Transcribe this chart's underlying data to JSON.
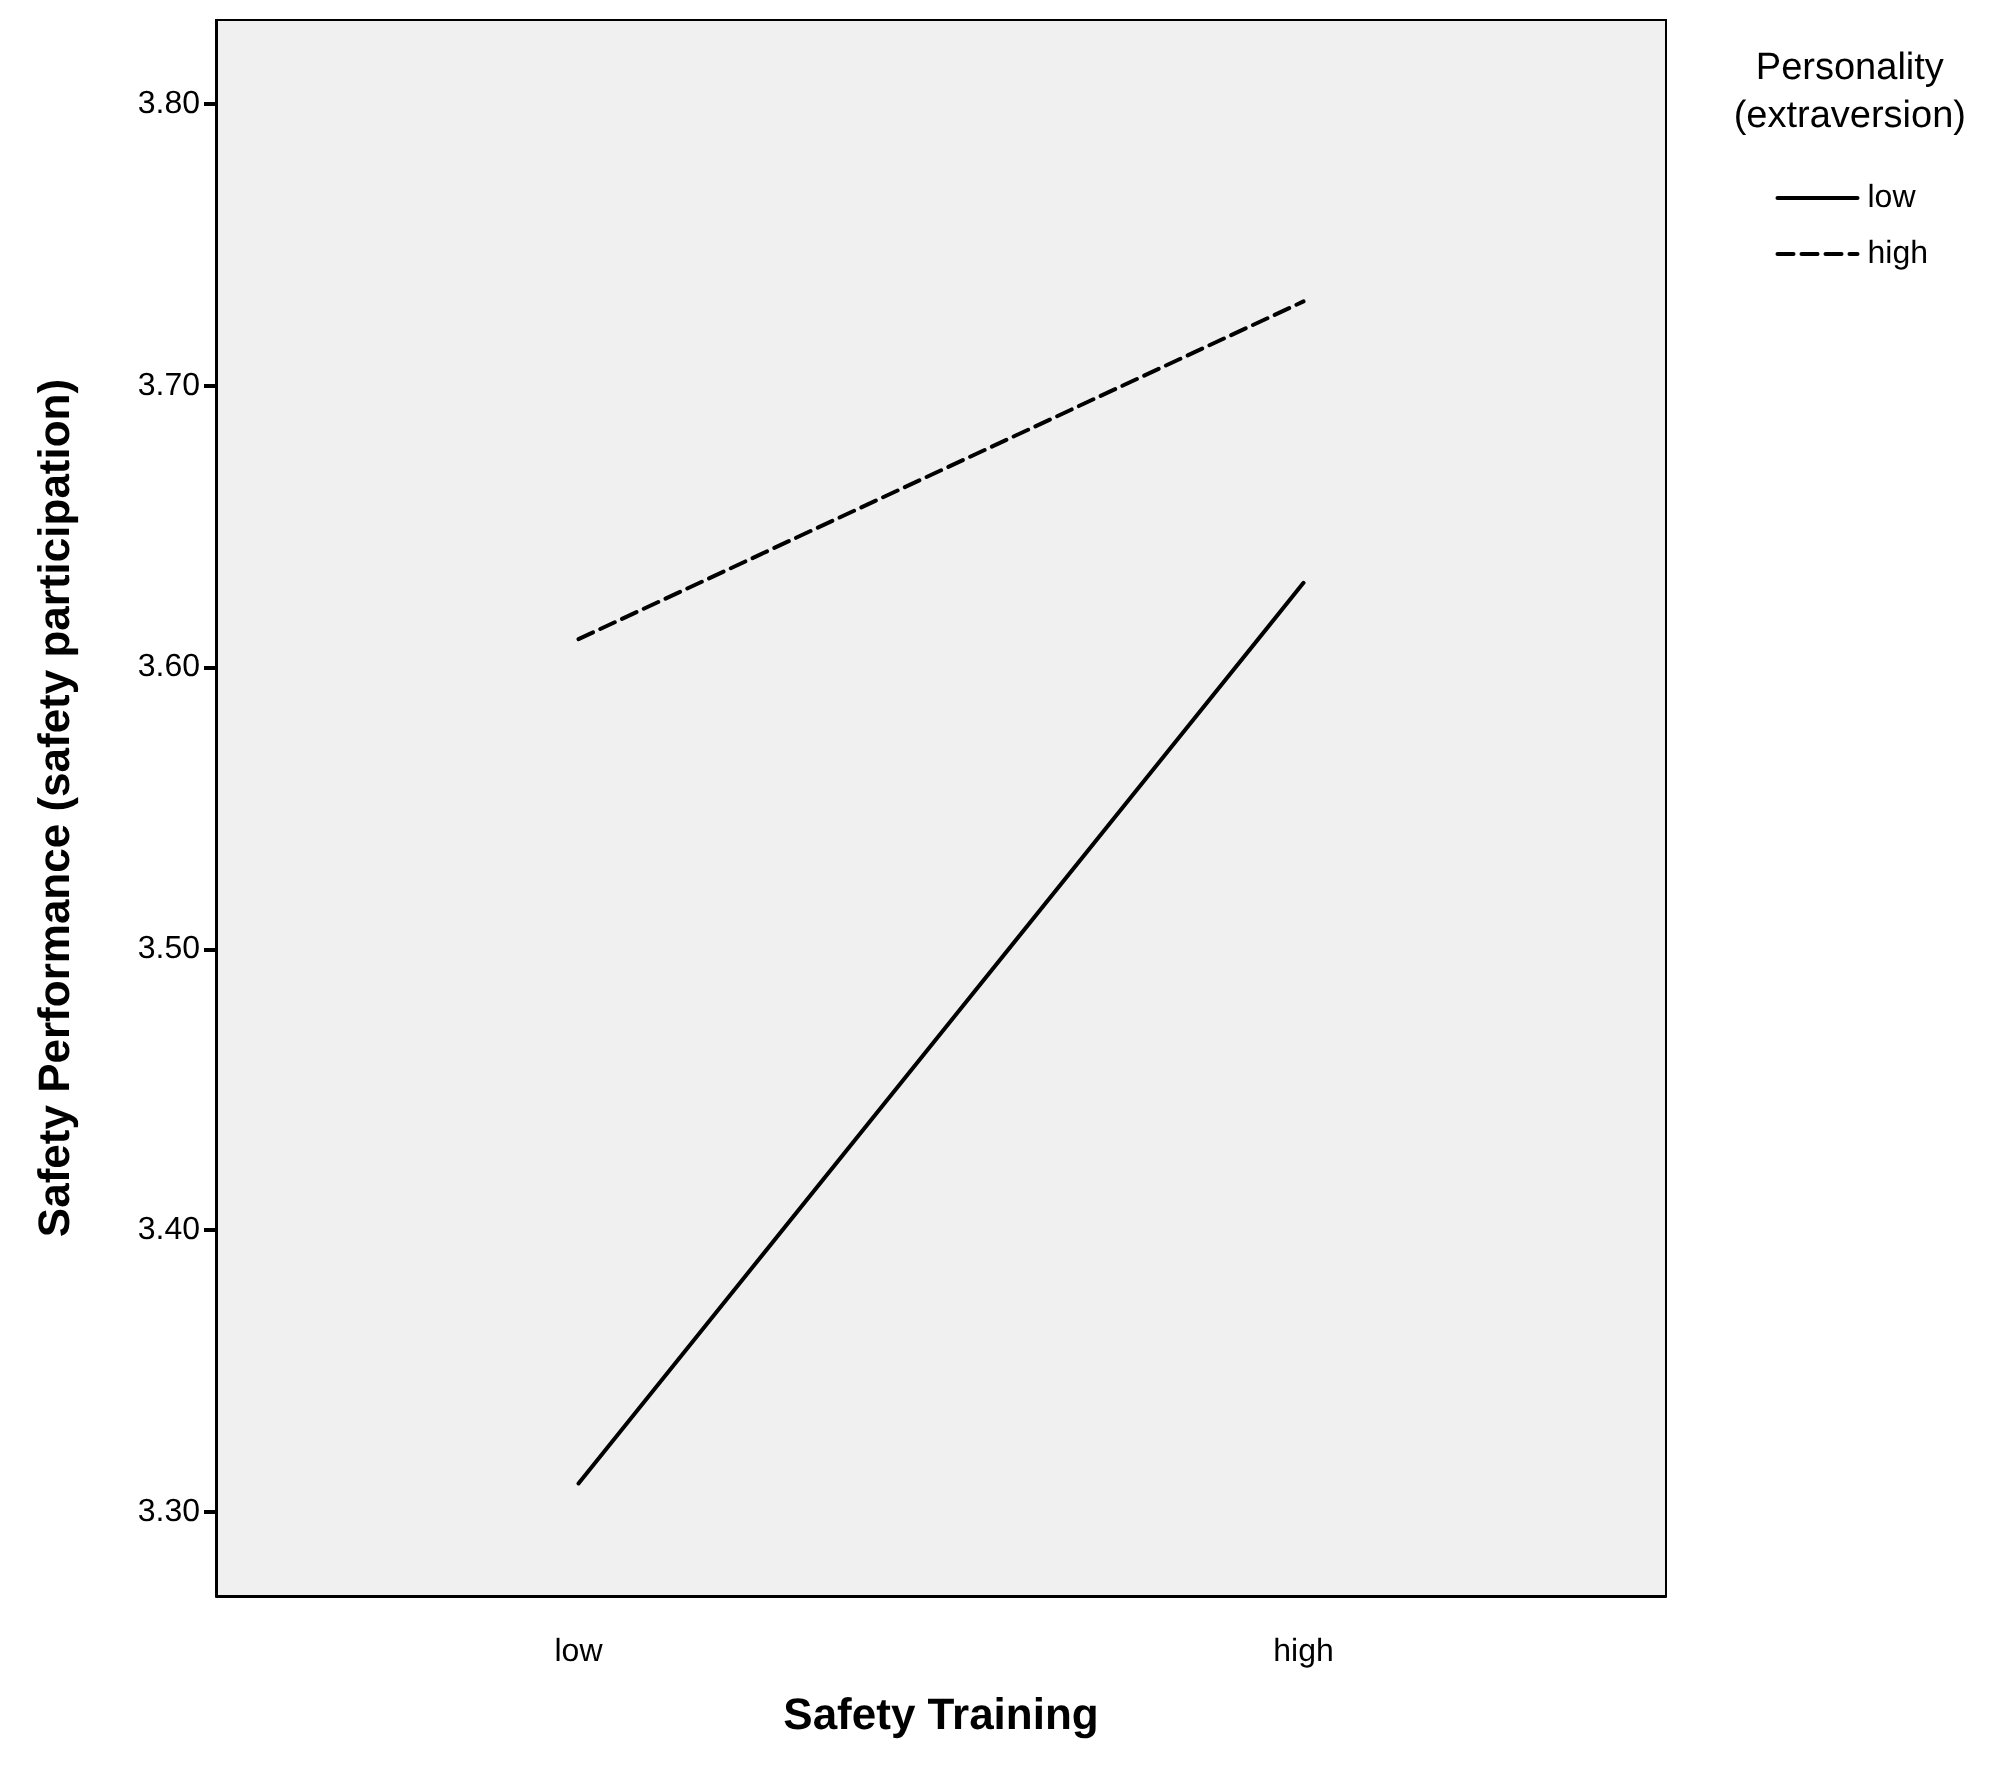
{
  "chart_data": {
    "type": "line",
    "xlabel": "Safety Training",
    "ylabel": "Safety Performance (safety participation)",
    "legend_title": "Personality\n(extraversion)",
    "categories": [
      "low",
      "high"
    ],
    "series": [
      {
        "name": "low",
        "color": "#000000",
        "values": [
          3.31,
          3.63
        ],
        "line_style": "solid"
      },
      {
        "name": "high",
        "color": "#000000",
        "values": [
          3.61,
          3.73
        ],
        "line_style": "dashed"
      }
    ],
    "ylim": [
      3.27,
      3.83
    ],
    "yticks": [
      {
        "value": 3.3,
        "label": "3.30"
      },
      {
        "value": 3.4,
        "label": "3.40"
      },
      {
        "value": 3.5,
        "label": "3.50"
      },
      {
        "value": 3.6,
        "label": "3.60"
      },
      {
        "value": 3.7,
        "label": "3.70"
      },
      {
        "value": 3.8,
        "label": "3.80"
      }
    ],
    "grid": false,
    "legend": "top right",
    "marker": "none"
  }
}
